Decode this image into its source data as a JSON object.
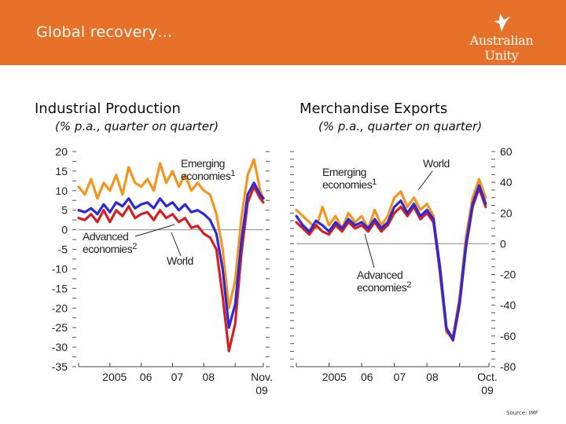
{
  "header": {
    "title": "Global recovery…",
    "logo_text": "Australian Unity",
    "bg_color": "#e8712a"
  },
  "source": "Source: IMF",
  "colors": {
    "emerging": "#f7941d",
    "world": "#2a2ad8",
    "advanced": "#d42020"
  },
  "chart_data": [
    {
      "type": "line",
      "title": "Industrial Production",
      "subtitle": "(% p.a., quarter on quarter)",
      "x_ticks": [
        "2005",
        "06",
        "07",
        "08"
      ],
      "x_end_label": [
        "Nov.",
        "09"
      ],
      "xlim": [
        2004.0,
        2009.9
      ],
      "ylim": [
        -35,
        20
      ],
      "y_ticks": [
        20,
        15,
        10,
        5,
        0,
        -5,
        -10,
        -15,
        -20,
        -25,
        -30,
        -35
      ],
      "y_labels": [
        "20",
        "15",
        "10",
        "5",
        "0",
        "-5",
        "-10",
        "-15",
        "-20",
        "-25",
        "-30",
        "-35"
      ],
      "zero_line": true,
      "series": [
        {
          "name": "Emerging economies",
          "color_key": "emerging",
          "x": [
            2004.0,
            2004.2,
            2004.4,
            2004.6,
            2004.8,
            2005.0,
            2005.2,
            2005.4,
            2005.6,
            2005.8,
            2006.0,
            2006.2,
            2006.4,
            2006.6,
            2006.8,
            2007.0,
            2007.2,
            2007.4,
            2007.6,
            2007.8,
            2008.0,
            2008.2,
            2008.4,
            2008.6,
            2008.8,
            2009.0,
            2009.2,
            2009.4,
            2009.6,
            2009.8,
            2009.9
          ],
          "values": [
            11,
            9,
            13,
            8,
            12,
            10,
            14,
            9,
            16,
            12,
            11,
            13,
            10,
            17,
            12,
            15,
            11,
            14,
            10,
            12,
            10,
            9,
            4,
            -5,
            -20,
            -13,
            3,
            14,
            18,
            10,
            8
          ]
        },
        {
          "name": "World",
          "color_key": "world",
          "x": [
            2004.0,
            2004.2,
            2004.4,
            2004.6,
            2004.8,
            2005.0,
            2005.2,
            2005.4,
            2005.6,
            2005.8,
            2006.0,
            2006.2,
            2006.4,
            2006.6,
            2006.8,
            2007.0,
            2007.2,
            2007.4,
            2007.6,
            2007.8,
            2008.0,
            2008.2,
            2008.4,
            2008.6,
            2008.8,
            2009.0,
            2009.2,
            2009.4,
            2009.6,
            2009.8,
            2009.9
          ],
          "values": [
            5,
            4.5,
            5.5,
            4,
            6.5,
            4.5,
            7,
            6,
            8,
            5.5,
            6.5,
            7,
            5.5,
            8,
            6,
            7,
            5,
            6.5,
            4.5,
            5,
            4,
            2.5,
            -1,
            -10,
            -25,
            -19,
            -3,
            9,
            12,
            9,
            8
          ]
        },
        {
          "name": "Advanced economies",
          "color_key": "advanced",
          "x": [
            2004.0,
            2004.2,
            2004.4,
            2004.6,
            2004.8,
            2005.0,
            2005.2,
            2005.4,
            2005.6,
            2005.8,
            2006.0,
            2006.2,
            2006.4,
            2006.6,
            2006.8,
            2007.0,
            2007.2,
            2007.4,
            2007.6,
            2007.8,
            2008.0,
            2008.2,
            2008.4,
            2008.6,
            2008.8,
            2009.0,
            2009.2,
            2009.4,
            2009.6,
            2009.8,
            2009.9
          ],
          "values": [
            3,
            2.5,
            4,
            2,
            5,
            2,
            5,
            3.5,
            6,
            3,
            4,
            4.5,
            2.5,
            5,
            3,
            4,
            2,
            3,
            0.5,
            1,
            -1,
            -2,
            -5,
            -17,
            -31,
            -24,
            -6,
            7,
            11,
            8,
            7
          ]
        }
      ],
      "annotations": [
        {
          "lines": [
            "Emerging",
            "economies"
          ],
          "sup": "1"
        },
        {
          "lines": [
            "Advanced",
            "economies"
          ],
          "sup": "2"
        },
        {
          "lines": [
            "World"
          ],
          "sup": ""
        }
      ]
    },
    {
      "type": "line",
      "title": "Merchandise Exports",
      "subtitle": "(% p.a., quarter on quarter)",
      "x_ticks": [
        "2005",
        "06",
        "07",
        "08"
      ],
      "x_end_label": [
        "Oct.",
        "09"
      ],
      "xlim": [
        2004.0,
        2009.9
      ],
      "ylim": [
        -80,
        60
      ],
      "y_ticks": [
        60,
        40,
        20,
        0,
        -20,
        -40,
        -60,
        -80
      ],
      "y_labels": [
        "60",
        "40",
        "20",
        "0",
        "-20",
        "-40",
        "-60",
        "-80"
      ],
      "zero_line": true,
      "series": [
        {
          "name": "Emerging economies",
          "color_key": "emerging",
          "x": [
            2004.0,
            2004.2,
            2004.4,
            2004.6,
            2004.8,
            2005.0,
            2005.2,
            2005.4,
            2005.6,
            2005.8,
            2006.0,
            2006.2,
            2006.4,
            2006.6,
            2006.8,
            2007.0,
            2007.2,
            2007.4,
            2007.6,
            2007.8,
            2008.0,
            2008.2,
            2008.4,
            2008.6,
            2008.8,
            2009.0,
            2009.2,
            2009.4,
            2009.6,
            2009.8
          ],
          "values": [
            22,
            18,
            14,
            10,
            24,
            12,
            18,
            10,
            20,
            14,
            18,
            10,
            22,
            12,
            18,
            30,
            34,
            24,
            30,
            22,
            26,
            18,
            -20,
            -58,
            -60,
            -35,
            5,
            30,
            42,
            30
          ]
        },
        {
          "name": "World",
          "color_key": "world",
          "x": [
            2004.0,
            2004.2,
            2004.4,
            2004.6,
            2004.8,
            2005.0,
            2005.2,
            2005.4,
            2005.6,
            2005.8,
            2006.0,
            2006.2,
            2006.4,
            2006.6,
            2006.8,
            2007.0,
            2007.2,
            2007.4,
            2007.6,
            2007.8,
            2008.0,
            2008.2,
            2008.4,
            2008.6,
            2008.8,
            2009.0,
            2009.2,
            2009.4,
            2009.6,
            2009.8
          ],
          "values": [
            18,
            12,
            8,
            15,
            12,
            8,
            14,
            10,
            16,
            12,
            14,
            10,
            16,
            10,
            14,
            24,
            28,
            20,
            26,
            18,
            22,
            16,
            -15,
            -55,
            -62,
            -38,
            0,
            26,
            38,
            26
          ]
        },
        {
          "name": "Advanced economies",
          "color_key": "advanced",
          "x": [
            2004.0,
            2004.2,
            2004.4,
            2004.6,
            2004.8,
            2005.0,
            2005.2,
            2005.4,
            2005.6,
            2005.8,
            2006.0,
            2006.2,
            2006.4,
            2006.6,
            2006.8,
            2007.0,
            2007.2,
            2007.4,
            2007.6,
            2007.8,
            2008.0,
            2008.2,
            2008.4,
            2008.6,
            2008.8,
            2009.0,
            2009.2,
            2009.4,
            2009.6,
            2009.8
          ],
          "values": [
            14,
            10,
            6,
            12,
            8,
            6,
            12,
            8,
            14,
            10,
            12,
            8,
            14,
            8,
            12,
            20,
            24,
            18,
            24,
            16,
            20,
            14,
            -18,
            -56,
            -63,
            -40,
            -2,
            24,
            36,
            24
          ]
        }
      ],
      "annotations": [
        {
          "lines": [
            "Emerging",
            "economies"
          ],
          "sup": "1"
        },
        {
          "lines": [
            "World"
          ],
          "sup": ""
        },
        {
          "lines": [
            "Advanced",
            "economies"
          ],
          "sup": "2"
        }
      ]
    }
  ]
}
